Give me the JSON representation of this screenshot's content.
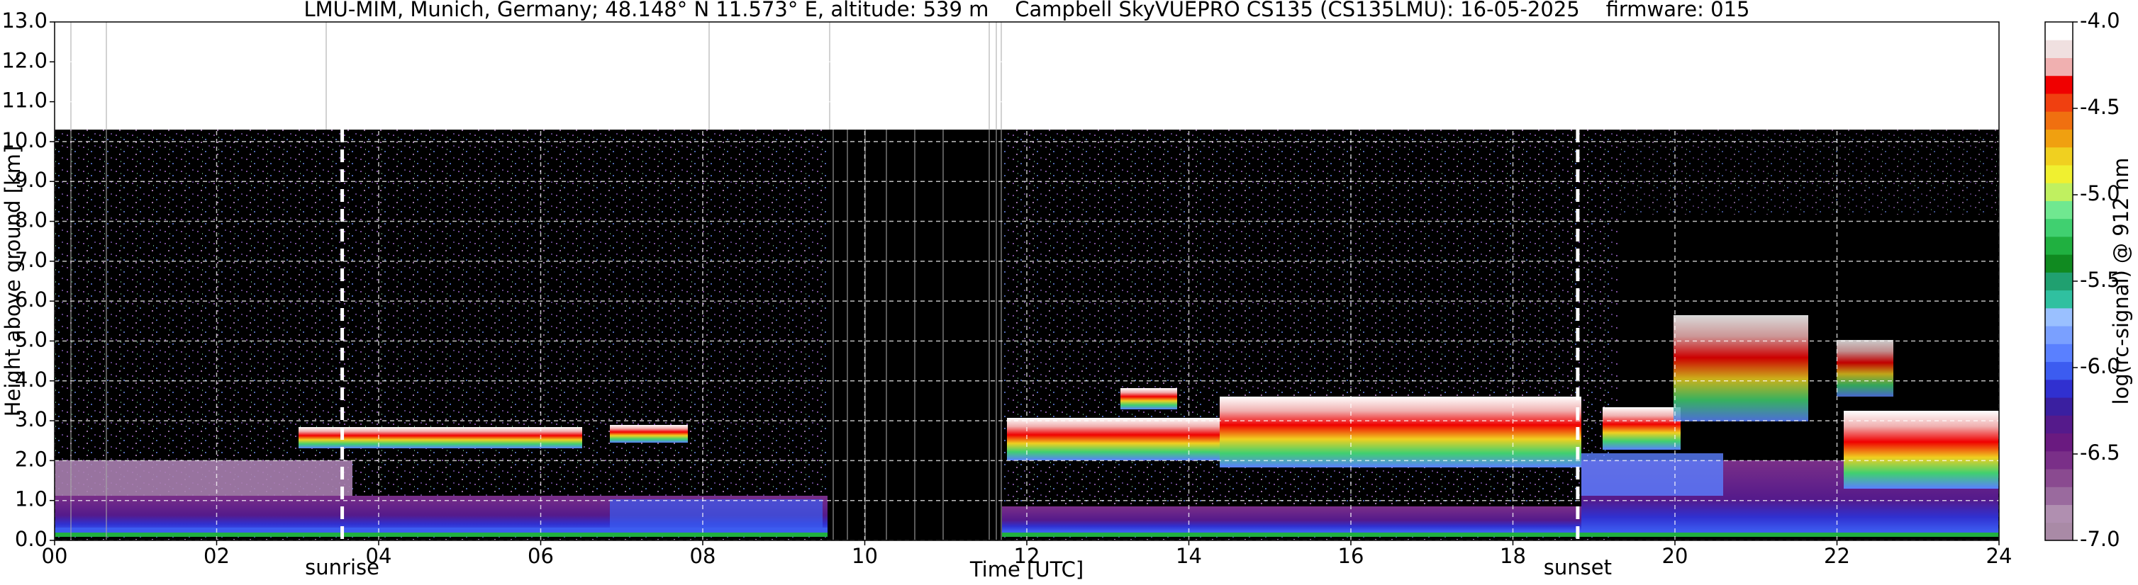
{
  "chart_data": {
    "type": "heatmap",
    "title": "LMU-MIM, Munich, Germany; 48.148° N 11.573° E, altitude: 539 m    Campbell SkyVUEPRO CS135 (CS135LMU): 16-05-2025    firmware: 015",
    "xlabel": "Time [UTC]",
    "ylabel": "Height above ground [km]",
    "xlim": [
      0,
      24
    ],
    "xticks": [
      {
        "value": 0,
        "label": "00"
      },
      {
        "value": 2,
        "label": "02"
      },
      {
        "value": 4,
        "label": "04"
      },
      {
        "value": 6,
        "label": "06"
      },
      {
        "value": 8,
        "label": "08"
      },
      10,
      12,
      14,
      16,
      18,
      20,
      22,
      24
    ],
    "ylim": [
      0,
      13
    ],
    "yticks": [
      {
        "value": 0,
        "label": "0.0"
      },
      {
        "value": 1,
        "label": "1.0"
      },
      {
        "value": 2,
        "label": "2.0"
      },
      {
        "value": 3,
        "label": "3.0"
      },
      {
        "value": 4,
        "label": "4.0"
      },
      {
        "value": 5,
        "label": "5.0"
      },
      {
        "value": 6,
        "label": "6.0"
      },
      {
        "value": 7,
        "label": "7.0"
      },
      {
        "value": 8,
        "label": "8.0"
      },
      {
        "value": 9,
        "label": "9.0"
      },
      {
        "value": 10,
        "label": "10.0"
      },
      {
        "value": 11,
        "label": "11.0"
      },
      {
        "value": 12,
        "label": "12.0"
      },
      {
        "value": 13,
        "label": "13.0"
      }
    ],
    "grid": true,
    "annotations": [
      {
        "text": "sunrise",
        "x": 3.55
      },
      {
        "text": "sunset",
        "x": 18.8
      }
    ],
    "colorbar": {
      "label": "log(rc-signal) @ 912 nm",
      "lim": [
        -7,
        -4
      ],
      "ticks": [
        {
          "value": -4,
          "label": "-4.0"
        },
        {
          "value": -4.5,
          "label": "-4.5"
        },
        {
          "value": -5,
          "label": "-5.0"
        },
        {
          "value": -5.5,
          "label": "-5.5"
        },
        {
          "value": -6,
          "label": "-6.0"
        },
        {
          "value": -6.5,
          "label": "-6.5"
        },
        {
          "value": -7,
          "label": "-7.0"
        }
      ],
      "colors": [
        "#a98aa6",
        "#b08fb0",
        "#9a6a9e",
        "#8a4a90",
        "#7a2f88",
        "#6a1a80",
        "#551a8b",
        "#3a1fa0",
        "#3030d0",
        "#3c5cf0",
        "#5a80ff",
        "#7aa0ff",
        "#9ac0ff",
        "#30c0a0",
        "#20a070",
        "#108a20",
        "#20b040",
        "#40d070",
        "#70e890",
        "#c0f060",
        "#f0f030",
        "#f0d020",
        "#f0a010",
        "#f07010",
        "#f04010",
        "#f00000",
        "#f0b0b0",
        "#f0e0e0",
        "#ffffff"
      ]
    }
  }
}
